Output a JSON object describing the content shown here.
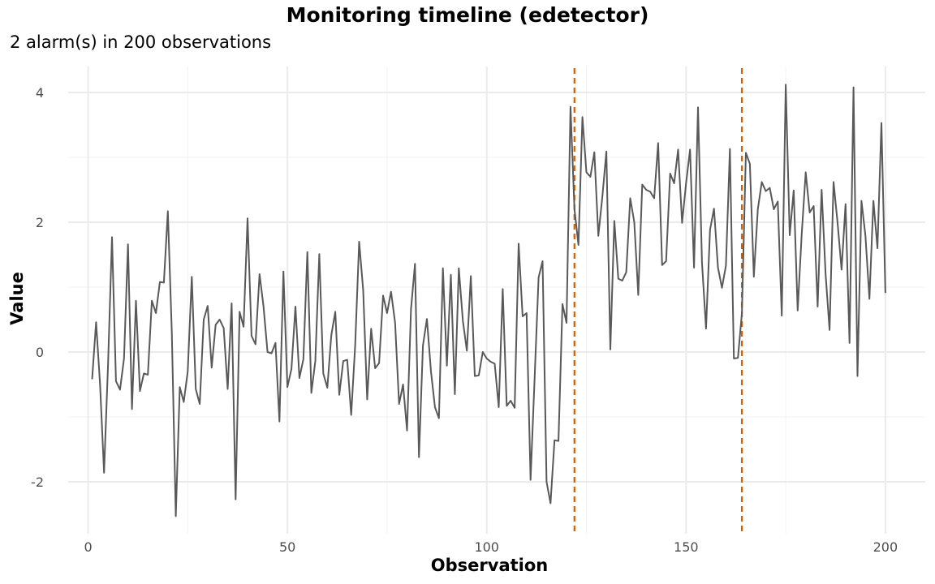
{
  "chart_data": {
    "type": "line",
    "title": "Monitoring timeline (edetector)",
    "subtitle": "2 alarm(s) in 200 observations",
    "xlabel": "Observation",
    "ylabel": "Value",
    "xlim": [
      -5,
      210
    ],
    "ylim": [
      -2.8,
      4.4
    ],
    "x_ticks": [
      0,
      50,
      100,
      150,
      200
    ],
    "x_tick_labels": [
      "0",
      "50",
      "100",
      "150",
      "200"
    ],
    "y_ticks": [
      -2,
      0,
      2,
      4
    ],
    "y_tick_labels": [
      "-2",
      "0",
      "2",
      "4"
    ],
    "grid": true,
    "line_color": "#595959",
    "alarm_color": "#d55e00",
    "alarms": [
      122,
      164
    ],
    "series": [
      {
        "x": [
          1,
          2,
          3,
          4,
          5,
          6,
          7,
          8,
          9,
          10,
          11,
          12,
          13,
          14,
          15,
          16,
          17,
          18,
          19,
          20,
          21,
          22,
          23,
          24,
          25,
          26,
          27,
          28,
          29,
          30,
          31,
          32,
          33,
          34,
          35,
          36,
          37,
          38,
          39,
          40,
          41,
          42,
          43,
          44,
          45,
          46,
          47,
          48,
          49,
          50,
          51,
          52,
          53,
          54,
          55,
          56,
          57,
          58,
          59,
          60,
          61,
          62,
          63,
          64,
          65,
          66,
          67,
          68,
          69,
          70,
          71,
          72,
          73,
          74,
          75,
          76,
          77,
          78,
          79,
          80,
          81,
          82,
          83,
          84,
          85,
          86,
          87,
          88,
          89,
          90,
          91,
          92,
          93,
          94,
          95,
          96,
          97,
          98,
          99,
          100,
          101,
          102,
          103,
          104,
          105,
          106,
          107,
          108,
          109,
          110,
          111,
          112,
          113,
          114,
          115,
          116,
          117,
          118,
          119,
          120,
          121,
          122,
          123,
          124,
          125,
          126,
          127,
          128,
          129,
          130,
          131,
          132,
          133,
          134,
          135,
          136,
          137,
          138,
          139,
          140,
          141,
          142,
          143,
          144,
          145,
          146,
          147,
          148,
          149,
          150,
          151,
          152,
          153,
          154,
          155,
          156,
          157,
          158,
          159,
          160,
          161,
          162,
          163,
          164,
          165,
          166,
          167,
          168,
          169,
          170,
          171,
          172,
          173,
          174,
          175,
          176,
          177,
          178,
          179,
          180,
          181,
          182,
          183,
          184,
          185,
          186,
          187,
          188,
          189,
          190,
          191,
          192,
          193,
          194,
          195,
          196,
          197,
          198,
          199,
          200
        ],
        "y": [
          -0.42,
          0.46,
          -0.5,
          -1.86,
          -0.2,
          1.77,
          -0.45,
          -0.58,
          -0.1,
          1.66,
          -0.88,
          0.79,
          -0.6,
          -0.33,
          -0.35,
          0.79,
          0.6,
          1.08,
          1.07,
          2.17,
          0.3,
          -2.53,
          -0.54,
          -0.77,
          -0.3,
          1.16,
          -0.57,
          -0.8,
          0.5,
          0.71,
          -0.24,
          0.42,
          0.5,
          0.37,
          -0.57,
          0.75,
          -2.27,
          0.62,
          0.39,
          2.06,
          0.25,
          0.12,
          1.2,
          0.7,
          0.0,
          -0.02,
          0.14,
          -1.07,
          1.24,
          -0.54,
          -0.26,
          0.7,
          -0.4,
          -0.11,
          1.54,
          -0.63,
          -0.14,
          1.51,
          -0.33,
          -0.55,
          0.26,
          0.62,
          -0.66,
          -0.14,
          -0.12,
          -0.97,
          0.1,
          1.7,
          0.95,
          -0.73,
          0.36,
          -0.25,
          -0.17,
          0.87,
          0.6,
          0.93,
          0.45,
          -0.8,
          -0.5,
          -1.21,
          0.66,
          1.36,
          -1.62,
          0.1,
          0.51,
          -0.3,
          -0.85,
          -1.02,
          1.29,
          -0.21,
          1.19,
          -0.65,
          1.29,
          0.48,
          0.02,
          1.17,
          -0.37,
          -0.36,
          0.0,
          -0.1,
          -0.15,
          -0.18,
          -0.85,
          0.97,
          -0.83,
          -0.75,
          -0.86,
          1.67,
          0.55,
          0.6,
          -1.97,
          -0.4,
          1.15,
          1.4,
          -2.0,
          -2.33,
          -1.36,
          -1.37,
          0.74,
          0.45,
          3.78,
          2.2,
          1.65,
          3.62,
          2.77,
          2.7,
          3.08,
          1.79,
          2.4,
          3.09,
          0.04,
          2.02,
          1.13,
          1.1,
          1.23,
          2.37,
          2.0,
          0.88,
          2.58,
          2.5,
          2.47,
          2.37,
          3.22,
          1.34,
          1.4,
          2.75,
          2.6,
          3.12,
          1.99,
          2.6,
          3.12,
          1.3,
          3.77,
          1.38,
          0.36,
          1.88,
          2.21,
          1.3,
          0.99,
          1.33,
          3.13,
          -0.1,
          -0.09,
          0.6,
          3.07,
          2.9,
          1.16,
          2.2,
          2.62,
          2.48,
          2.53,
          2.2,
          2.32,
          0.56,
          4.12,
          1.8,
          2.49,
          0.64,
          1.8,
          2.77,
          2.15,
          2.25,
          0.7,
          2.5,
          1.2,
          0.34,
          2.62,
          2.0,
          1.27,
          2.28,
          0.14,
          4.08,
          -0.37,
          2.33,
          1.79,
          0.82,
          2.33,
          1.6,
          3.53,
          0.91
        ]
      }
    ]
  }
}
